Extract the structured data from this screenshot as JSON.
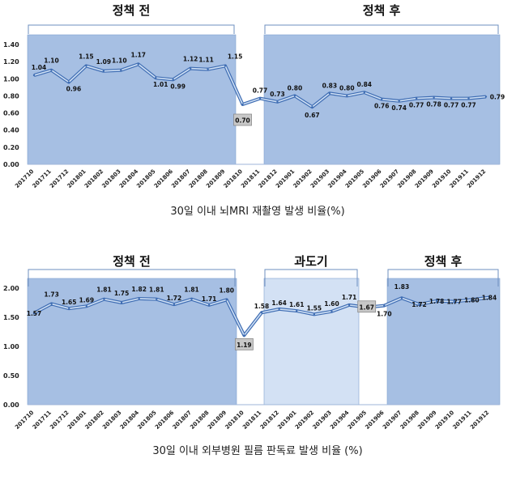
{
  "charts": [
    {
      "caption": "30일 이내 뇌MRI 재촬영 발생 비율(%)",
      "yticks": [
        "0.00",
        "0.20",
        "0.40",
        "0.60",
        "0.80",
        "1.00",
        "1.20",
        "1.40"
      ],
      "periods": [
        {
          "label": "정책 전",
          "shade": "#a6bfe3"
        },
        {
          "label": "정책 후",
          "shade": "#a6bfe3"
        }
      ]
    },
    {
      "caption": "30일 이내 외부병원 필름 판독료 발생 비율 (%)",
      "yticks": [
        "0.00",
        "0.50",
        "1.00",
        "1.50",
        "2.00"
      ],
      "periods": [
        {
          "label": "정책 전",
          "shade": "#a6bfe3"
        },
        {
          "label": "과도기",
          "shade": "#d3e1f4"
        },
        {
          "label": "정책 후",
          "shade": "#a6bfe3"
        }
      ]
    }
  ],
  "chart_data": [
    {
      "type": "line",
      "title": "30일 이내 뇌MRI 재촬영 발생 비율(%)",
      "categories": [
        "201710",
        "201711",
        "201712",
        "201801",
        "201802",
        "201803",
        "201804",
        "201805",
        "201806",
        "201807",
        "201808",
        "201809",
        "201810",
        "201811",
        "201812",
        "201901",
        "201902",
        "201903",
        "201904",
        "201905",
        "201906",
        "201907",
        "201908",
        "201909",
        "201910",
        "201911",
        "201912"
      ],
      "values": [
        1.04,
        1.1,
        0.96,
        1.15,
        1.09,
        1.1,
        1.17,
        1.01,
        0.99,
        1.12,
        1.11,
        1.15,
        0.7,
        0.77,
        0.73,
        0.8,
        0.67,
        0.83,
        0.8,
        0.84,
        0.76,
        0.74,
        0.77,
        0.78,
        0.77,
        0.77,
        0.79
      ],
      "data_labels": [
        "1.04",
        "1.10",
        "0.96",
        "1.15",
        "1.09",
        "1.10",
        "1.17",
        "1.01",
        "0.99",
        "1.12",
        "1.11",
        "1.15",
        "0.70",
        "0.77",
        "0.73",
        "0.80",
        "0.67",
        "0.83",
        "0.80",
        "0.84",
        "0.76",
        "0.74",
        "0.77",
        "0.78",
        "0.77",
        "0.77",
        "0.79"
      ],
      "ylim": [
        0,
        1.4
      ],
      "periods": [
        {
          "label": "정책 전",
          "from": "201710",
          "to": "201809"
        },
        {
          "label": "정책 후",
          "from": "201811",
          "to": "201912"
        }
      ],
      "grid": false,
      "color": "#5b8bd0"
    },
    {
      "type": "line",
      "title": "30일 이내 외부병원 필름 판독료 발생 비율 (%)",
      "categories": [
        "201710",
        "201711",
        "201712",
        "201801",
        "201802",
        "201803",
        "201804",
        "201805",
        "201806",
        "201807",
        "201808",
        "201809",
        "201810",
        "201811",
        "201812",
        "201901",
        "201902",
        "201903",
        "201904",
        "201905",
        "201906",
        "201907",
        "201908",
        "201909",
        "201910",
        "201911",
        "201912"
      ],
      "values": [
        1.57,
        1.73,
        1.65,
        1.69,
        1.81,
        1.75,
        1.82,
        1.81,
        1.72,
        1.81,
        1.71,
        1.8,
        1.19,
        1.58,
        1.64,
        1.61,
        1.55,
        1.6,
        1.71,
        1.67,
        1.7,
        1.83,
        1.72,
        1.78,
        1.77,
        1.8,
        1.84
      ],
      "data_labels": [
        "1.57",
        "1.73",
        "1.65",
        "1.69",
        "1.81",
        "1.75",
        "1.82",
        "1.81",
        "1.72",
        "1.81",
        "1.71",
        "1.80",
        "1.19",
        "1.58",
        "1.64",
        "1.61",
        "1.55",
        "1.60",
        "1.71",
        "1.67",
        "1.70",
        "1.83",
        "1.72",
        "1.78",
        "1.77",
        "1.80",
        "1.84"
      ],
      "ylim": [
        0,
        2.0
      ],
      "periods": [
        {
          "label": "정책 전",
          "from": "201710",
          "to": "201809"
        },
        {
          "label": "과도기",
          "from": "201811",
          "to": "201904"
        },
        {
          "label": "정책 후",
          "from": "201906",
          "to": "201912"
        }
      ],
      "grid": false,
      "color": "#5b8bd0"
    }
  ]
}
